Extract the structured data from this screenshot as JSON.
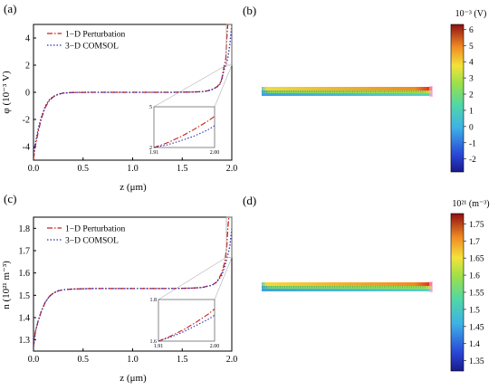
{
  "panels": {
    "a": "(a)",
    "b": "(b)",
    "c": "(c)",
    "d": "(d)"
  },
  "chart_data": [
    {
      "id": "a",
      "type": "line",
      "xlabel": "z (μm)",
      "ylabel": "φ (10⁻³ V)",
      "xlim": [
        0,
        2.0
      ],
      "ylim": [
        -5,
        5
      ],
      "xticks": [
        "0.0",
        "0.5",
        "1.0",
        "1.5",
        "2.0"
      ],
      "yticks": [
        "-4",
        "-2",
        "0",
        "2",
        "4"
      ],
      "legend_placement": "top-left",
      "series": [
        {
          "name": "1−D Perturbation",
          "color": "#cc1f1a",
          "style": "dash-dot",
          "x": [
            0.0,
            0.02,
            0.05,
            0.08,
            0.12,
            0.16,
            0.2,
            0.25,
            0.3,
            0.4,
            0.6,
            1.0,
            1.4,
            1.6,
            1.7,
            1.75,
            1.8,
            1.85,
            1.88,
            1.9,
            1.92,
            1.94,
            1.95,
            1.96,
            1.97
          ],
          "y": [
            -4.9,
            -3.9,
            -2.8,
            -1.9,
            -1.1,
            -0.6,
            -0.33,
            -0.15,
            -0.06,
            -0.01,
            0.0,
            0.0,
            0.0,
            0.02,
            0.05,
            0.1,
            0.2,
            0.4,
            0.65,
            1.0,
            1.8,
            2.5,
            4.0,
            5.0,
            5.0
          ]
        },
        {
          "name": "3−D COMSOL",
          "color": "#2b2fb0",
          "style": "dotted",
          "x": [
            0.0,
            0.02,
            0.05,
            0.08,
            0.12,
            0.16,
            0.2,
            0.25,
            0.3,
            0.4,
            0.6,
            1.0,
            1.4,
            1.6,
            1.7,
            1.75,
            1.8,
            1.85,
            1.88,
            1.9,
            1.92,
            1.94,
            1.96,
            1.98,
            2.0
          ],
          "y": [
            -4.6,
            -3.7,
            -2.6,
            -1.8,
            -1.0,
            -0.55,
            -0.3,
            -0.13,
            -0.05,
            -0.01,
            0.0,
            0.0,
            0.0,
            0.02,
            0.05,
            0.1,
            0.2,
            0.38,
            0.6,
            0.95,
            1.6,
            2.0,
            2.5,
            3.5,
            5.0
          ]
        }
      ],
      "inset": {
        "xticks": [
          "1.91",
          "2.00"
        ],
        "yticks": [
          "2",
          "5"
        ],
        "xlim": [
          1.91,
          2.0
        ],
        "ylim": [
          2,
          5
        ],
        "series": [
          {
            "x": [
              1.91,
              1.93,
              1.95,
              1.97,
              1.99,
              2.0
            ],
            "y": [
              2.0,
              2.35,
              2.8,
              3.35,
              3.95,
              4.3
            ],
            "color": "#cc1f1a",
            "style": "dash-dot"
          },
          {
            "x": [
              1.91,
              1.93,
              1.95,
              1.97,
              1.99,
              2.0
            ],
            "y": [
              2.0,
              2.2,
              2.5,
              2.85,
              3.3,
              3.6
            ],
            "color": "#2b2fb0",
            "style": "dotted"
          }
        ]
      }
    },
    {
      "id": "c",
      "type": "line",
      "xlabel": "z (μm)",
      "ylabel": "n (10²¹ m⁻³)",
      "xlim": [
        0,
        2.0
      ],
      "ylim": [
        1.25,
        1.85
      ],
      "xticks": [
        "0.0",
        "0.5",
        "1.0",
        "1.5",
        "2.0"
      ],
      "yticks": [
        "1.3",
        "1.4",
        "1.5",
        "1.6",
        "1.7",
        "1.8"
      ],
      "legend_placement": "top-left",
      "series": [
        {
          "name": "1−D Perturbation",
          "color": "#cc1f1a",
          "style": "dash-dot",
          "x": [
            0.0,
            0.02,
            0.05,
            0.08,
            0.12,
            0.16,
            0.2,
            0.25,
            0.3,
            0.4,
            0.6,
            1.0,
            1.4,
            1.6,
            1.7,
            1.8,
            1.85,
            1.9,
            1.93,
            1.95,
            1.96,
            1.97
          ],
          "y": [
            1.27,
            1.34,
            1.39,
            1.43,
            1.47,
            1.495,
            1.51,
            1.52,
            1.525,
            1.528,
            1.53,
            1.53,
            1.53,
            1.532,
            1.535,
            1.545,
            1.56,
            1.6,
            1.65,
            1.72,
            1.8,
            1.85
          ]
        },
        {
          "name": "3−D COMSOL",
          "color": "#2b2fb0",
          "style": "dotted",
          "x": [
            0.0,
            0.02,
            0.05,
            0.08,
            0.12,
            0.16,
            0.2,
            0.25,
            0.3,
            0.4,
            0.6,
            1.0,
            1.4,
            1.6,
            1.7,
            1.8,
            1.85,
            1.9,
            1.93,
            1.96,
            1.98,
            2.0
          ],
          "y": [
            1.27,
            1.34,
            1.39,
            1.43,
            1.47,
            1.495,
            1.51,
            1.52,
            1.525,
            1.528,
            1.53,
            1.53,
            1.53,
            1.532,
            1.535,
            1.545,
            1.56,
            1.59,
            1.63,
            1.68,
            1.72,
            1.8
          ]
        }
      ],
      "inset": {
        "xticks": [
          "1.91",
          "2.00"
        ],
        "yticks": [
          "1.6",
          "1.8"
        ],
        "xlim": [
          1.91,
          2.0
        ],
        "ylim": [
          1.6,
          1.8
        ],
        "series": [
          {
            "x": [
              1.91,
              1.93,
              1.95,
              1.97,
              1.99,
              2.0
            ],
            "y": [
              1.6,
              1.625,
              1.655,
              1.69,
              1.73,
              1.755
            ],
            "color": "#cc1f1a",
            "style": "dash-dot"
          },
          {
            "x": [
              1.91,
              1.93,
              1.95,
              1.97,
              1.99,
              2.0
            ],
            "y": [
              1.6,
              1.62,
              1.645,
              1.675,
              1.705,
              1.725
            ],
            "color": "#2b2fb0",
            "style": "dotted"
          }
        ]
      }
    },
    {
      "id": "b",
      "type": "heatmap",
      "colorbar_title": "10⁻³ (V)",
      "colorbar_ticks": [
        "6",
        "5",
        "4",
        "3",
        "2",
        "1",
        "0",
        "-1",
        "-2"
      ],
      "colorbar_range": [
        -2.8,
        6.3
      ]
    },
    {
      "id": "d",
      "type": "heatmap",
      "colorbar_title": "10²¹ (m⁻³)",
      "colorbar_ticks": [
        "1.75",
        "1.7",
        "1.65",
        "1.6",
        "1.55",
        "1.5",
        "1.45",
        "1.4",
        "1.35"
      ],
      "colorbar_range": [
        1.32,
        1.78
      ]
    }
  ]
}
